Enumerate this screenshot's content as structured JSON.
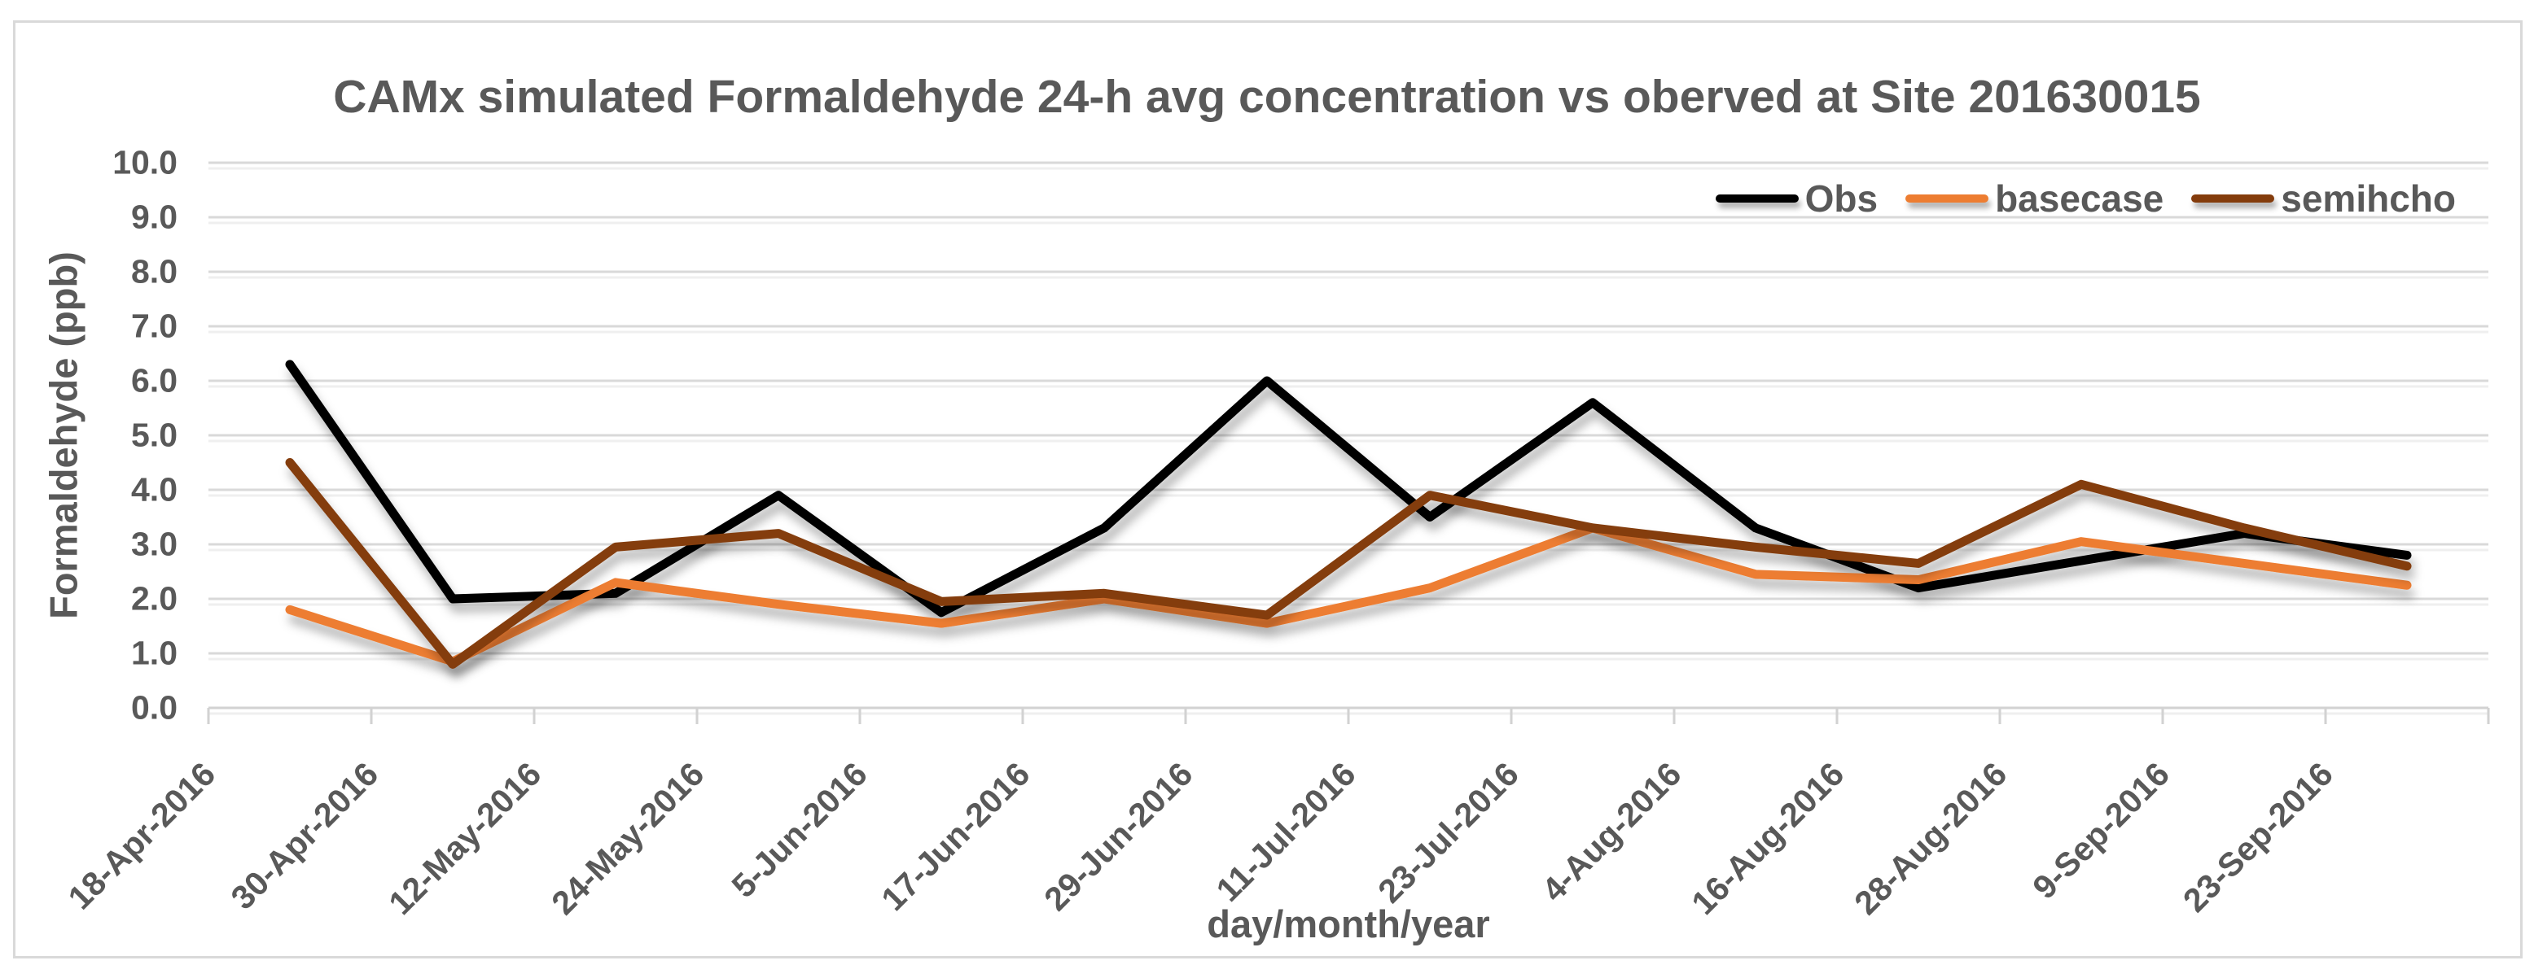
{
  "figure": {
    "title": "CAMx simulated Formaldehyde 24-h avg concentration vs oberved at Site 201630015"
  },
  "colors": {
    "obs": "#000000",
    "basecase": "#ED7D31",
    "semihcho": "#843C0C",
    "text": "#595959",
    "gridline": "#D9D9D9",
    "gridline_shadow": "#EFEFEF",
    "axis_line": "#D2D2D2"
  },
  "chart_data": {
    "type": "line",
    "title": "CAMx simulated Formaldehyde 24-h avg concentration vs oberved at Site 201630015",
    "xlabel": "day/month/year",
    "ylabel": "Formaldehyde (ppb)",
    "ylim": [
      0.0,
      10.0
    ],
    "ytick_step": 1.0,
    "grid": "horizontal",
    "legend_position": "top-right-inside",
    "y_tick_labels": [
      "10.0",
      "9.0",
      "8.0",
      "7.0",
      "6.0",
      "5.0",
      "4.0",
      "3.0",
      "2.0",
      "1.0",
      "0.0"
    ],
    "categories": [
      "18-Apr-2016",
      "30-Apr-2016",
      "12-May-2016",
      "24-May-2016",
      "5-Jun-2016",
      "17-Jun-2016",
      "29-Jun-2016",
      "11-Jul-2016",
      "23-Jul-2016",
      "4-Aug-2016",
      "16-Aug-2016",
      "28-Aug-2016",
      "9-Sep-2016",
      "23-Sep-2016"
    ],
    "series": [
      {
        "name": "Obs",
        "color": "#000000",
        "values": [
          6.3,
          2.0,
          2.1,
          3.9,
          1.75,
          3.3,
          6.0,
          3.5,
          5.6,
          3.3,
          2.2,
          2.7,
          3.2,
          2.8
        ]
      },
      {
        "name": "basecase",
        "color": "#ED7D31",
        "values": [
          1.8,
          0.85,
          2.3,
          1.9,
          1.55,
          2.0,
          1.55,
          2.2,
          3.3,
          2.45,
          2.35,
          3.05,
          2.65,
          2.25
        ]
      },
      {
        "name": "semihcho",
        "color": "#843C0C",
        "values": [
          4.5,
          0.8,
          2.95,
          3.2,
          1.95,
          2.1,
          1.7,
          3.9,
          3.3,
          2.95,
          2.65,
          4.1,
          3.3,
          2.6
        ]
      }
    ]
  }
}
